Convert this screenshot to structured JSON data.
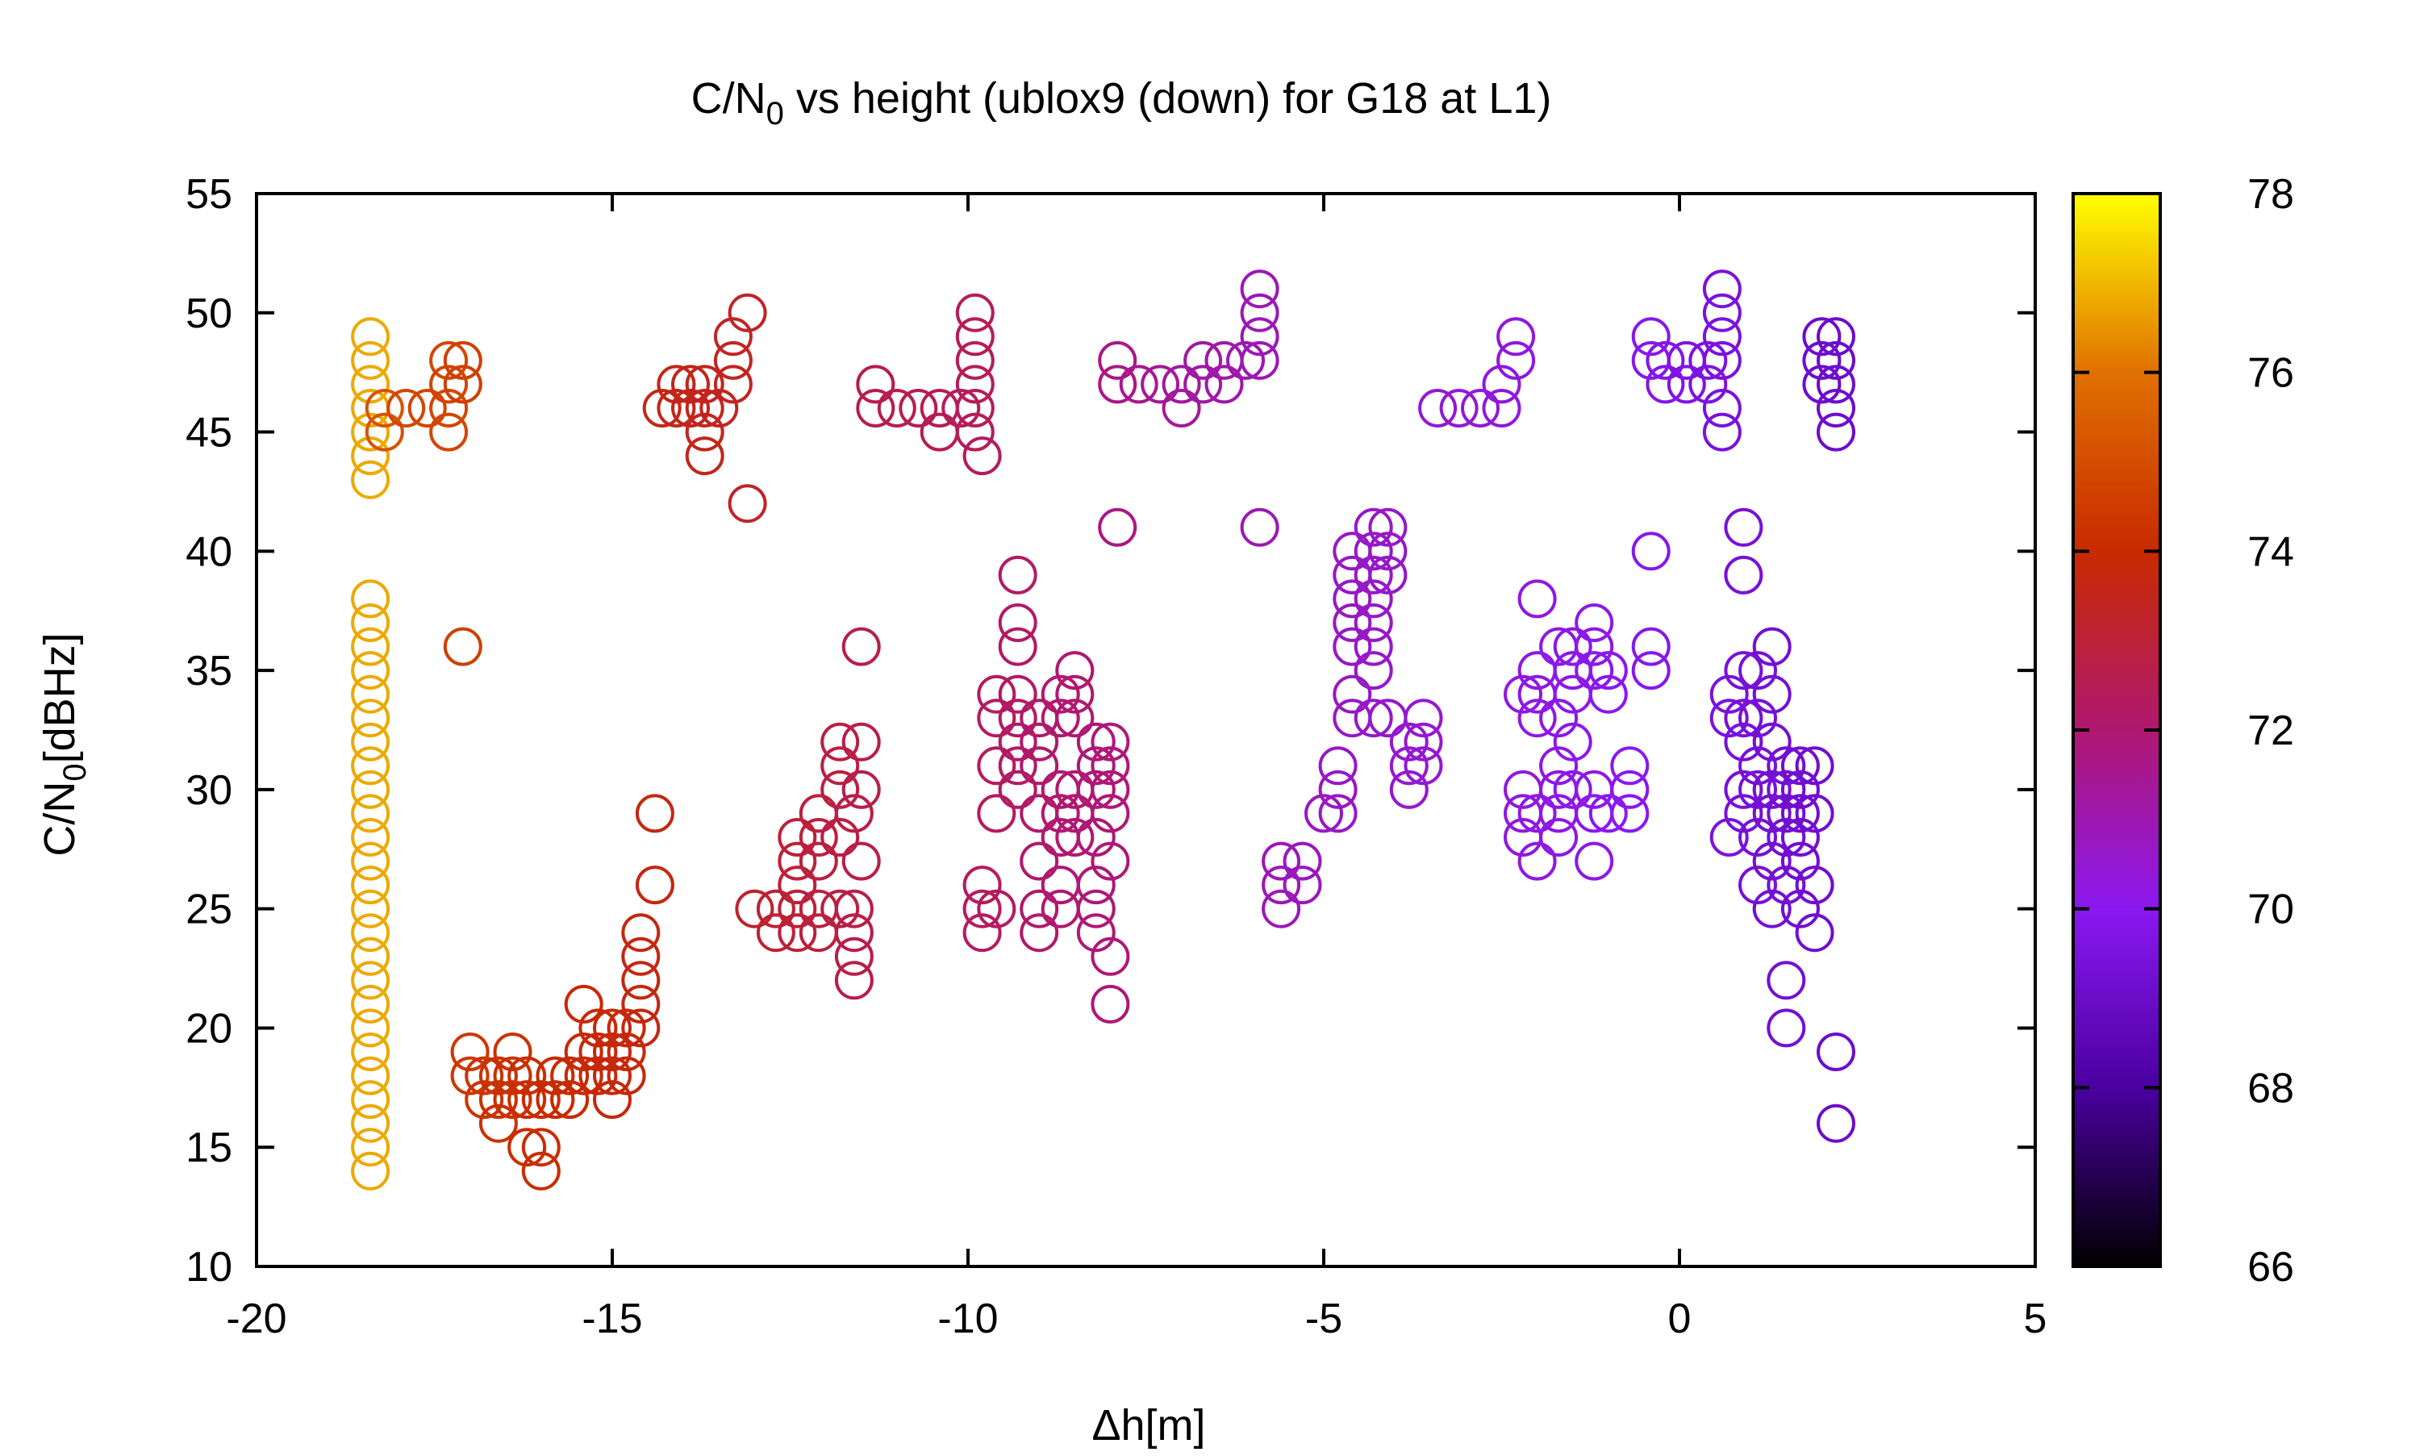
{
  "chart_data": {
    "type": "scatter",
    "title": "C/N0 vs height (ublox9 (down) for G18 at L1)",
    "title_parts": {
      "pre": "C/N",
      "sub": "0",
      "post": " vs height (ublox9 (down) for G18 at L1)"
    },
    "xlabel": "Δh[m]",
    "ylabel": "C/N0[dBHz]",
    "ylabel_parts": {
      "pre": "C/N",
      "sub": "0",
      "post": "[dBHz]"
    },
    "xlim": [
      -20,
      5
    ],
    "ylim": [
      10,
      55
    ],
    "xticks": [
      -20,
      -15,
      -10,
      -5,
      0,
      5
    ],
    "yticks": [
      10,
      15,
      20,
      25,
      30,
      35,
      40,
      45,
      50,
      55
    ],
    "grid": false,
    "legend": "none",
    "marker": "open-circle",
    "colorbar": {
      "label": "",
      "range": [
        66,
        78
      ],
      "ticks": [
        66,
        68,
        70,
        72,
        74,
        76,
        78
      ],
      "colormap": "black-purple-red-orange-yellow"
    },
    "groups": [
      {
        "x": -18.4,
        "c": 76.8,
        "y": [
          14,
          15,
          16,
          17,
          18,
          19,
          20,
          21,
          22,
          23,
          24,
          25,
          26,
          27,
          28,
          29,
          30,
          31,
          32,
          33,
          34,
          35,
          36,
          37,
          38,
          43,
          44,
          45,
          46,
          47,
          48,
          49
        ]
      },
      {
        "x": -18.2,
        "c": 75.2,
        "y": [
          45,
          46
        ]
      },
      {
        "x": -17.9,
        "c": 74.8,
        "y": [
          46
        ]
      },
      {
        "x": -17.6,
        "c": 74.8,
        "y": [
          46
        ]
      },
      {
        "x": -17.3,
        "c": 74.8,
        "y": [
          45,
          46,
          47,
          48
        ]
      },
      {
        "x": -17.1,
        "c": 74.6,
        "y": [
          36,
          47,
          48
        ]
      },
      {
        "x": -17.0,
        "c": 74.4,
        "y": [
          18,
          19
        ]
      },
      {
        "x": -16.8,
        "c": 74.3,
        "y": [
          17,
          18
        ]
      },
      {
        "x": -16.6,
        "c": 74.2,
        "y": [
          16,
          17,
          18
        ]
      },
      {
        "x": -16.4,
        "c": 74.2,
        "y": [
          17,
          18,
          19
        ]
      },
      {
        "x": -16.2,
        "c": 74.1,
        "y": [
          15,
          17,
          18
        ]
      },
      {
        "x": -16.0,
        "c": 74.1,
        "y": [
          14,
          15,
          17
        ]
      },
      {
        "x": -15.8,
        "c": 74.0,
        "y": [
          17,
          18
        ]
      },
      {
        "x": -15.6,
        "c": 74.0,
        "y": [
          17,
          18
        ]
      },
      {
        "x": -15.4,
        "c": 73.9,
        "y": [
          18,
          19,
          21
        ]
      },
      {
        "x": -15.2,
        "c": 73.9,
        "y": [
          18,
          19,
          20
        ]
      },
      {
        "x": -15.0,
        "c": 73.8,
        "y": [
          17,
          18,
          19,
          20
        ]
      },
      {
        "x": -14.8,
        "c": 73.8,
        "y": [
          18,
          19,
          20
        ]
      },
      {
        "x": -14.6,
        "c": 73.7,
        "y": [
          20,
          21,
          22,
          23,
          24
        ]
      },
      {
        "x": -14.4,
        "c": 73.7,
        "y": [
          26,
          29
        ]
      },
      {
        "x": -14.3,
        "c": 73.6,
        "y": [
          46
        ]
      },
      {
        "x": -14.1,
        "c": 73.6,
        "y": [
          46,
          47
        ]
      },
      {
        "x": -13.9,
        "c": 73.5,
        "y": [
          46,
          47
        ]
      },
      {
        "x": -13.7,
        "c": 73.5,
        "y": [
          44,
          45,
          46,
          47
        ]
      },
      {
        "x": -13.5,
        "c": 73.4,
        "y": [
          46
        ]
      },
      {
        "x": -13.3,
        "c": 73.4,
        "y": [
          47,
          48,
          49
        ]
      },
      {
        "x": -13.1,
        "c": 73.3,
        "y": [
          42,
          50
        ]
      },
      {
        "x": -13.0,
        "c": 73.2,
        "y": [
          25
        ]
      },
      {
        "x": -12.7,
        "c": 73.1,
        "y": [
          24,
          25
        ]
      },
      {
        "x": -12.4,
        "c": 73.0,
        "y": [
          24,
          25,
          26,
          27,
          28
        ]
      },
      {
        "x": -12.1,
        "c": 72.9,
        "y": [
          24,
          25,
          27,
          28,
          29
        ]
      },
      {
        "x": -11.8,
        "c": 72.8,
        "y": [
          25,
          28,
          30,
          31,
          32
        ]
      },
      {
        "x": -11.6,
        "c": 72.7,
        "y": [
          22,
          23,
          24,
          25,
          29
        ]
      },
      {
        "x": -11.5,
        "c": 72.7,
        "y": [
          27,
          30,
          32,
          36
        ]
      },
      {
        "x": -11.3,
        "c": 72.6,
        "y": [
          46,
          47
        ]
      },
      {
        "x": -11.0,
        "c": 72.6,
        "y": [
          46
        ]
      },
      {
        "x": -10.7,
        "c": 72.5,
        "y": [
          46
        ]
      },
      {
        "x": -10.4,
        "c": 72.5,
        "y": [
          45,
          46
        ]
      },
      {
        "x": -10.1,
        "c": 72.4,
        "y": [
          46
        ]
      },
      {
        "x": -9.9,
        "c": 72.4,
        "y": [
          45,
          46,
          47,
          48,
          49,
          50
        ]
      },
      {
        "x": -9.8,
        "c": 72.3,
        "y": [
          24,
          25,
          26,
          44
        ]
      },
      {
        "x": -9.6,
        "c": 72.3,
        "y": [
          25,
          29,
          31,
          33,
          34
        ]
      },
      {
        "x": -9.3,
        "c": 72.2,
        "y": [
          30,
          31,
          32,
          33,
          34,
          36,
          37,
          39
        ]
      },
      {
        "x": -9.0,
        "c": 72.1,
        "y": [
          24,
          25,
          27,
          29,
          31,
          32,
          33
        ]
      },
      {
        "x": -8.7,
        "c": 72.0,
        "y": [
          25,
          26,
          28,
          29,
          30,
          33,
          34
        ]
      },
      {
        "x": -8.5,
        "c": 72.0,
        "y": [
          28,
          29,
          30,
          33,
          34,
          35
        ]
      },
      {
        "x": -8.2,
        "c": 71.9,
        "y": [
          24,
          25,
          26,
          28,
          30,
          31,
          32
        ]
      },
      {
        "x": -8.0,
        "c": 71.9,
        "y": [
          21,
          23,
          27,
          29,
          30,
          31,
          32
        ]
      },
      {
        "x": -7.9,
        "c": 71.7,
        "y": [
          41,
          47,
          48
        ]
      },
      {
        "x": -7.6,
        "c": 71.5,
        "y": [
          47
        ]
      },
      {
        "x": -7.3,
        "c": 71.4,
        "y": [
          47
        ]
      },
      {
        "x": -7.0,
        "c": 71.3,
        "y": [
          46,
          47
        ]
      },
      {
        "x": -6.7,
        "c": 71.2,
        "y": [
          47,
          48
        ]
      },
      {
        "x": -6.4,
        "c": 71.1,
        "y": [
          47,
          48
        ]
      },
      {
        "x": -6.1,
        "c": 71.0,
        "y": [
          48
        ]
      },
      {
        "x": -5.9,
        "c": 70.9,
        "y": [
          41,
          48,
          49,
          50,
          51
        ]
      },
      {
        "x": -5.6,
        "c": 70.9,
        "y": [
          25,
          26,
          27
        ]
      },
      {
        "x": -5.3,
        "c": 70.8,
        "y": [
          26,
          27
        ]
      },
      {
        "x": -5.0,
        "c": 70.8,
        "y": [
          29
        ]
      },
      {
        "x": -4.8,
        "c": 70.7,
        "y": [
          29,
          30,
          31
        ]
      },
      {
        "x": -4.6,
        "c": 70.7,
        "y": [
          33,
          34,
          36,
          37,
          38,
          39,
          40
        ]
      },
      {
        "x": -4.3,
        "c": 70.6,
        "y": [
          33,
          35,
          36,
          37,
          38,
          39,
          40,
          41
        ]
      },
      {
        "x": -4.1,
        "c": 70.6,
        "y": [
          33,
          39,
          40,
          41
        ]
      },
      {
        "x": -3.8,
        "c": 70.5,
        "y": [
          30,
          31,
          32
        ]
      },
      {
        "x": -3.6,
        "c": 70.5,
        "y": [
          31,
          32,
          33
        ]
      },
      {
        "x": -3.4,
        "c": 70.5,
        "y": [
          46
        ]
      },
      {
        "x": -3.1,
        "c": 70.4,
        "y": [
          46
        ]
      },
      {
        "x": -2.8,
        "c": 70.4,
        "y": [
          46
        ]
      },
      {
        "x": -2.5,
        "c": 70.3,
        "y": [
          46,
          47
        ]
      },
      {
        "x": -2.3,
        "c": 70.3,
        "y": [
          48,
          49
        ]
      },
      {
        "x": -2.2,
        "c": 70.3,
        "y": [
          28,
          29,
          30,
          34
        ]
      },
      {
        "x": -2.0,
        "c": 70.2,
        "y": [
          27,
          29,
          33,
          34,
          35,
          38
        ]
      },
      {
        "x": -1.7,
        "c": 70.2,
        "y": [
          28,
          29,
          30,
          31,
          33,
          36
        ]
      },
      {
        "x": -1.5,
        "c": 70.1,
        "y": [
          30,
          32,
          34,
          35,
          36
        ]
      },
      {
        "x": -1.2,
        "c": 70.1,
        "y": [
          27,
          29,
          30,
          35,
          36,
          37
        ]
      },
      {
        "x": -1.0,
        "c": 70.0,
        "y": [
          29,
          34,
          35
        ]
      },
      {
        "x": -0.7,
        "c": 70.0,
        "y": [
          29,
          30,
          31
        ]
      },
      {
        "x": -0.4,
        "c": 69.9,
        "y": [
          35,
          36,
          40,
          48,
          49
        ]
      },
      {
        "x": -0.2,
        "c": 69.8,
        "y": [
          47,
          48
        ]
      },
      {
        "x": 0.1,
        "c": 69.7,
        "y": [
          47,
          48
        ]
      },
      {
        "x": 0.4,
        "c": 69.6,
        "y": [
          47,
          48
        ]
      },
      {
        "x": 0.6,
        "c": 69.5,
        "y": [
          45,
          46,
          48,
          49,
          50,
          51
        ]
      },
      {
        "x": 0.7,
        "c": 69.5,
        "y": [
          28,
          33,
          34
        ]
      },
      {
        "x": 0.9,
        "c": 69.4,
        "y": [
          29,
          30,
          32,
          33,
          35,
          39,
          41
        ]
      },
      {
        "x": 1.1,
        "c": 69.4,
        "y": [
          26,
          28,
          30,
          31,
          33,
          35
        ]
      },
      {
        "x": 1.3,
        "c": 69.3,
        "y": [
          25,
          27,
          29,
          30,
          32,
          34,
          36
        ]
      },
      {
        "x": 1.5,
        "c": 69.3,
        "y": [
          20,
          22,
          26,
          28,
          29,
          30,
          31
        ]
      },
      {
        "x": 1.7,
        "c": 69.2,
        "y": [
          25,
          27,
          28,
          29,
          30,
          31
        ]
      },
      {
        "x": 1.9,
        "c": 69.2,
        "y": [
          24,
          26,
          29,
          31
        ]
      },
      {
        "x": 2.0,
        "c": 69.1,
        "y": [
          47,
          48,
          49
        ]
      },
      {
        "x": 2.2,
        "c": 69.1,
        "y": [
          16,
          19,
          45,
          46,
          47,
          48,
          49
        ]
      }
    ]
  }
}
